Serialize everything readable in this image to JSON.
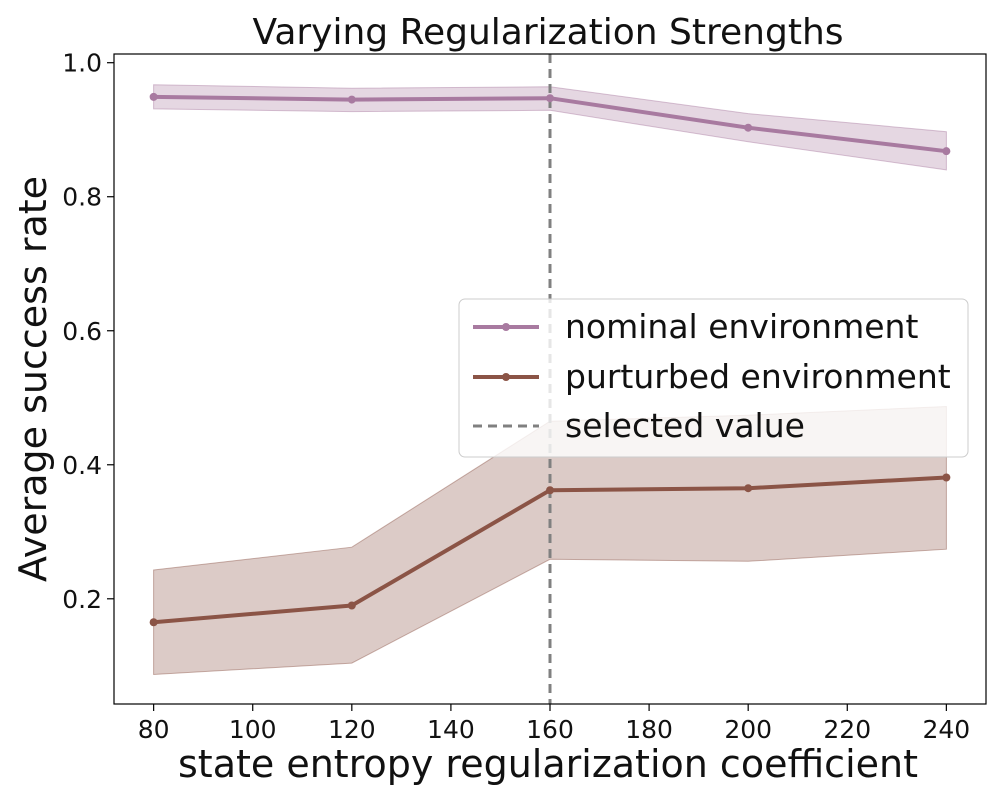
{
  "chart_data": {
    "type": "line",
    "title": "Varying Regularization Strengths",
    "xlabel": "state entropy regularization coefficient",
    "ylabel": "Average success rate",
    "x": [
      80,
      120,
      160,
      200,
      240
    ],
    "xlim": [
      72,
      248
    ],
    "ylim": [
      0.043,
      1.013
    ],
    "xticks": [
      80,
      100,
      120,
      140,
      160,
      180,
      200,
      220,
      240
    ],
    "yticks": [
      0.2,
      0.4,
      0.6,
      0.8,
      1.0
    ],
    "ytick_labels": [
      "0.2",
      "0.4",
      "0.6",
      "0.8",
      "1.0"
    ],
    "grid": false,
    "legend_position": "center-right",
    "series": [
      {
        "name": "nominal environment",
        "color": "#a87aa0",
        "values": [
          0.949,
          0.945,
          0.947,
          0.903,
          0.868
        ],
        "lower": [
          0.931,
          0.927,
          0.929,
          0.882,
          0.84
        ],
        "upper": [
          0.967,
          0.962,
          0.964,
          0.924,
          0.897
        ]
      },
      {
        "name": "purturbed environment",
        "color": "#8b5446",
        "values": [
          0.165,
          0.19,
          0.362,
          0.365,
          0.381
        ],
        "lower": [
          0.087,
          0.104,
          0.259,
          0.256,
          0.274
        ],
        "upper": [
          0.243,
          0.277,
          0.465,
          0.474,
          0.487
        ]
      }
    ],
    "reference_line": {
      "name": "selected value",
      "x": 160,
      "color": "#808080",
      "style": "dashed"
    }
  }
}
